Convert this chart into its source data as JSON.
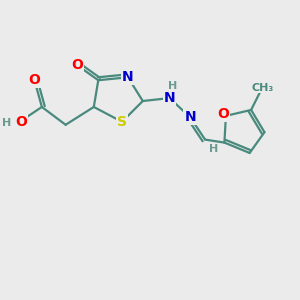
{
  "bg_color": "#ebebeb",
  "bond_color": "#4a8a7e",
  "bond_width": 1.6,
  "atom_colors": {
    "O": "#ff0000",
    "N": "#0000cc",
    "S": "#cccc00",
    "H": "#6a9a90",
    "C": "#4a8a7e"
  },
  "font_size_atom": 10,
  "font_size_small": 8,
  "font_size_h": 8
}
